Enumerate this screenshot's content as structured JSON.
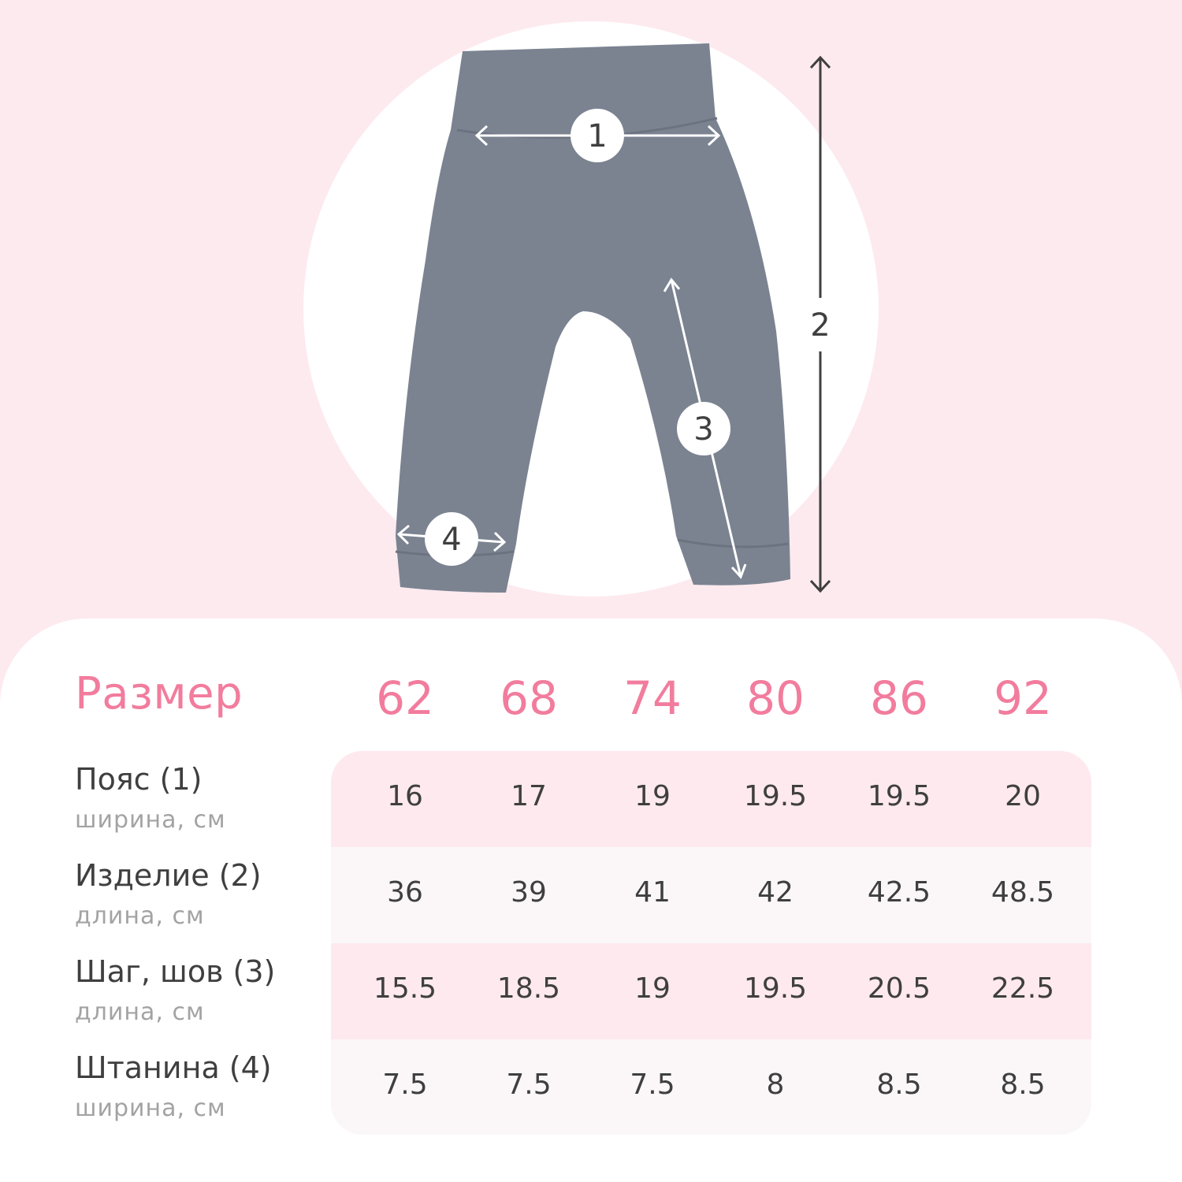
{
  "colors": {
    "accent": "#f27c9d",
    "background": "#fdeaef",
    "garment": "#7b8391"
  },
  "illustration": {
    "markers": [
      "1",
      "2",
      "3",
      "4"
    ]
  },
  "table": {
    "title": "Размер",
    "sizes": [
      "62",
      "68",
      "74",
      "80",
      "86",
      "92"
    ],
    "rows": [
      {
        "label": "Пояс (1)",
        "sub": "ширина, см",
        "values": [
          "16",
          "17",
          "19",
          "19.5",
          "19.5",
          "20"
        ]
      },
      {
        "label": "Изделие (2)",
        "sub": "длина, см",
        "values": [
          "36",
          "39",
          "41",
          "42",
          "42.5",
          "48.5"
        ]
      },
      {
        "label": "Шаг, шов (3)",
        "sub": "длина, см",
        "values": [
          "15.5",
          "18.5",
          "19",
          "19.5",
          "20.5",
          "22.5"
        ]
      },
      {
        "label": "Штанина (4)",
        "sub": "ширина, см",
        "values": [
          "7.5",
          "7.5",
          "7.5",
          "8",
          "8.5",
          "8.5"
        ]
      }
    ]
  }
}
